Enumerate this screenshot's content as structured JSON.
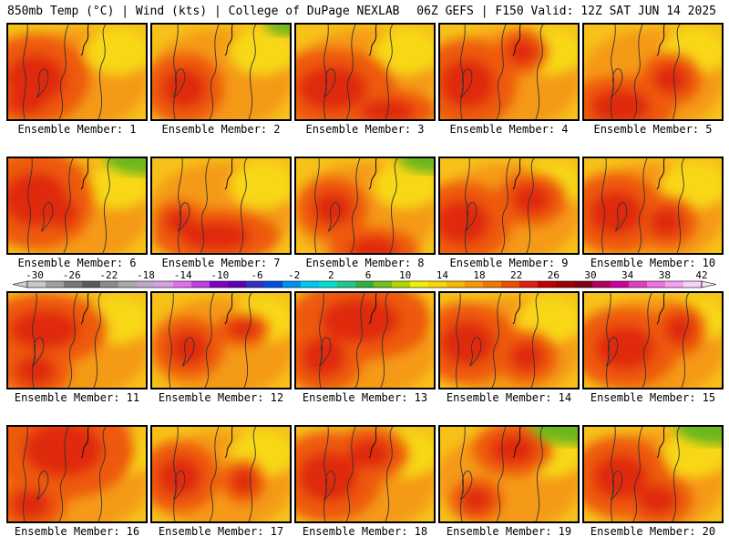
{
  "header": {
    "title_left": "850mb Temp (°C) | Wind (kts) | College of DuPage NEXLAB",
    "title_right": "06Z GEFS | F150 Valid: 12Z SAT JUN 14 2025"
  },
  "colorbar": {
    "labels": [
      "-30",
      "-26",
      "-22",
      "-18",
      "-14",
      "-10",
      "-6",
      "-2",
      "2",
      "6",
      "10",
      "14",
      "18",
      "22",
      "26",
      "30",
      "34",
      "38",
      "42"
    ],
    "colors": [
      "#c8c8c8",
      "#a0a0a0",
      "#787878",
      "#5a5a5a",
      "#8c8c8c",
      "#aaaaaa",
      "#c0a8c8",
      "#d8a0e0",
      "#e070f0",
      "#c040e0",
      "#8000c0",
      "#6000b0",
      "#3030c0",
      "#0050e0",
      "#0090f0",
      "#00c8f0",
      "#00e0d0",
      "#20c890",
      "#30b040",
      "#70c020",
      "#b0d800",
      "#f0f000",
      "#f8d800",
      "#f8b800",
      "#f89800",
      "#f07800",
      "#e85000",
      "#e02010",
      "#c00000",
      "#a00000",
      "#800010",
      "#b00060",
      "#d000a0",
      "#e040c0",
      "#f070e0",
      "#f8a0f0",
      "#f8d0f8"
    ]
  },
  "members": [
    {
      "label": "Ensemble Member: 1"
    },
    {
      "label": "Ensemble Member: 2"
    },
    {
      "label": "Ensemble Member: 3"
    },
    {
      "label": "Ensemble Member: 4"
    },
    {
      "label": "Ensemble Member: 5"
    },
    {
      "label": "Ensemble Member: 6"
    },
    {
      "label": "Ensemble Member: 7"
    },
    {
      "label": "Ensemble Member: 8"
    },
    {
      "label": "Ensemble Member: 9"
    },
    {
      "label": "Ensemble Member: 10"
    },
    {
      "label": "Ensemble Member: 11"
    },
    {
      "label": "Ensemble Member: 12"
    },
    {
      "label": "Ensemble Member: 13"
    },
    {
      "label": "Ensemble Member: 14"
    },
    {
      "label": "Ensemble Member: 15"
    },
    {
      "label": "Ensemble Member: 16"
    },
    {
      "label": "Ensemble Member: 17"
    },
    {
      "label": "Ensemble Member: 18"
    },
    {
      "label": "Ensemble Member: 19"
    },
    {
      "label": "Ensemble Member: 20"
    }
  ]
}
